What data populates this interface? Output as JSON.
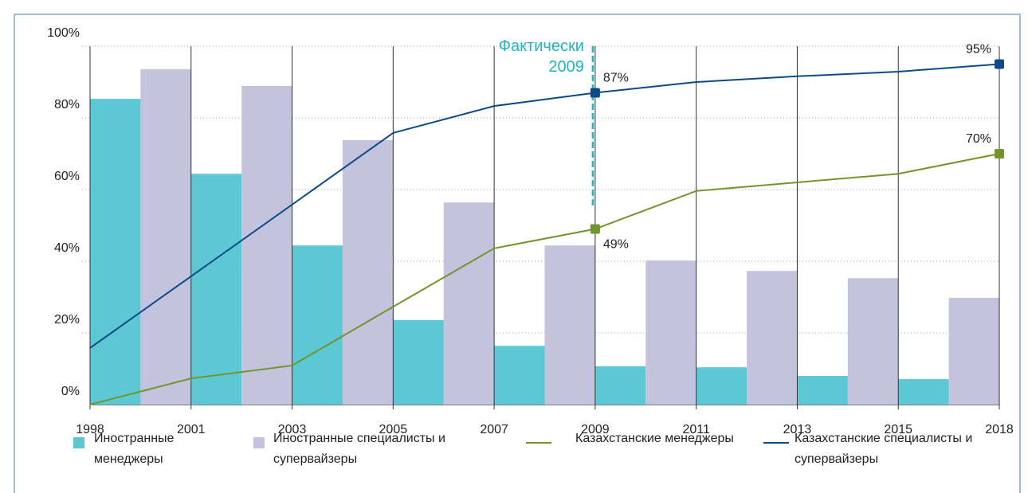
{
  "chart_data": {
    "type": "bar",
    "categories": [
      "1998",
      "2001",
      "2003",
      "2005",
      "2007",
      "2009",
      "2011",
      "2013",
      "2015",
      "2018"
    ],
    "ylim": [
      0,
      100
    ],
    "yticks": [
      {
        "value": 0,
        "label": "0%"
      },
      {
        "value": 20,
        "label": "20%"
      },
      {
        "value": 40,
        "label": "40%"
      },
      {
        "value": 60,
        "label": "60%"
      },
      {
        "value": 80,
        "label": "80%"
      },
      {
        "value": 100,
        "label": "100%"
      }
    ],
    "grid": true,
    "annotation": {
      "x": "2009",
      "lines": [
        "Фактически",
        "2009"
      ],
      "color": "#1fb5c4"
    },
    "series": [
      {
        "name": "Иностранные менеджеры",
        "kind": "bar",
        "color": "#5bc8d4",
        "values": [
          85.3,
          64.4,
          44.4,
          23.6,
          16.4,
          10.7,
          10.4,
          8,
          7.1,
          null
        ]
      },
      {
        "name": "Иностранные специалисты и супервайзеры",
        "kind": "bar",
        "color": "#c3c3de",
        "values": [
          93.6,
          88.9,
          73.8,
          56.4,
          44.4,
          40.2,
          37.3,
          35.3,
          29.8,
          null
        ]
      },
      {
        "name": "Казахстанские менеджеры",
        "kind": "line",
        "color": "#72952b",
        "values": [
          0,
          7.3,
          10.9,
          27.3,
          43.6,
          49,
          59.6,
          62,
          64.4,
          70
        ],
        "value_labels": [
          null,
          null,
          null,
          null,
          null,
          "49%",
          null,
          null,
          null,
          "70%"
        ]
      },
      {
        "name": "Казахстанские специалисты и супервайзеры",
        "kind": "line",
        "color": "#0d4a87",
        "values": [
          15.8,
          35.8,
          55.8,
          75.8,
          83.3,
          87,
          90,
          91.6,
          92.9,
          95
        ],
        "value_labels": [
          null,
          null,
          null,
          null,
          null,
          "87%",
          null,
          null,
          null,
          "95%"
        ]
      }
    ]
  }
}
